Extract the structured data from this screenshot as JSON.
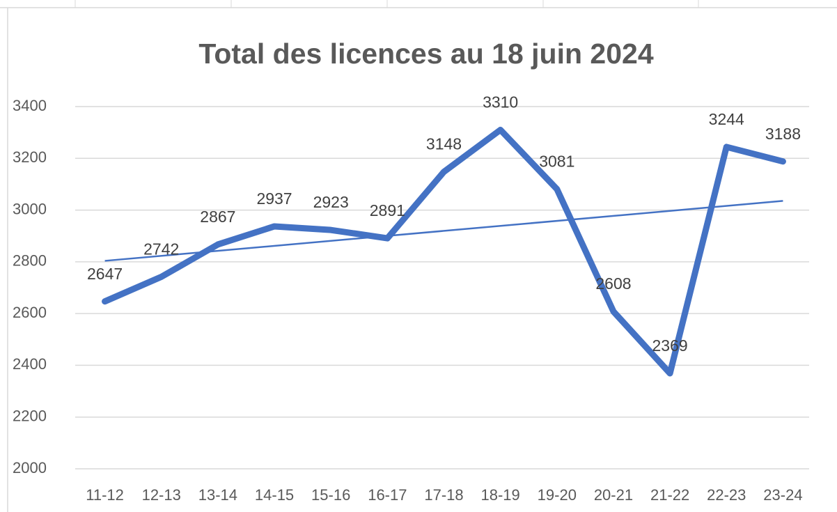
{
  "chart_data": {
    "type": "line",
    "title": "Total des licences au 18 juin 2024",
    "categories": [
      "11-12",
      "12-13",
      "13-14",
      "14-15",
      "15-16",
      "16-17",
      "17-18",
      "18-19",
      "19-20",
      "20-21",
      "21-22",
      "22-23",
      "23-24"
    ],
    "series": [
      {
        "color": "#4472c4",
        "values": [
          2647,
          2742,
          2867,
          2937,
          2923,
          2891,
          3148,
          3310,
          3081,
          2608,
          2369,
          3244,
          3188
        ]
      }
    ],
    "ylim": [
      2000,
      3400
    ],
    "yticks": [
      2000,
      2200,
      2400,
      2600,
      2800,
      3000,
      3200,
      3400
    ],
    "grid": true,
    "data_labels": true,
    "trendline": "linear"
  }
}
